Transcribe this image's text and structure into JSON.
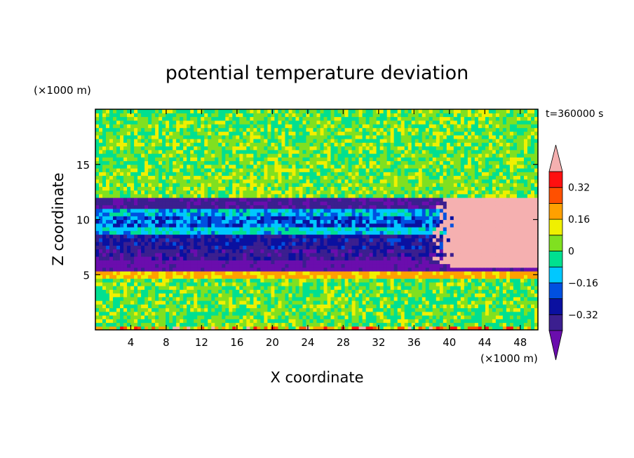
{
  "chart_data": {
    "type": "heatmap",
    "title": "potential temperature deviation",
    "xlabel": "X coordinate",
    "ylabel": "Z coordinate",
    "x_unit": "(×1000 m)",
    "y_unit": "(×1000 m)",
    "time_label": "t=360000 s",
    "xlim": [
      0,
      50
    ],
    "ylim": [
      0,
      20
    ],
    "x_ticks": [
      4,
      8,
      12,
      16,
      20,
      24,
      28,
      32,
      36,
      40,
      44,
      48
    ],
    "y_ticks": [
      5,
      10,
      15
    ],
    "colorbar": {
      "levels": [
        -0.48,
        -0.4,
        -0.32,
        -0.24,
        -0.16,
        -0.08,
        0,
        0.08,
        0.16,
        0.24,
        0.32,
        0.4
      ],
      "labels": [
        0.32,
        0.16,
        0,
        -0.16,
        -0.32
      ],
      "label_text": [
        "0.32",
        "0.16",
        "0",
        "−0.16",
        "−0.32"
      ],
      "colors": [
        "#6a0dad",
        "#3b1f8f",
        "#0a10a0",
        "#0050e0",
        "#00c8ff",
        "#00e090",
        "#80e020",
        "#f0f000",
        "#ffa000",
        "#ff5000",
        "#ff1010",
        "#f5b0b0"
      ],
      "extend": "both"
    },
    "bands": [
      {
        "zmin": 0.0,
        "zmax": 0.3,
        "value": 0.2,
        "noise": 0.25
      },
      {
        "zmin": 0.3,
        "zmax": 4.8,
        "value": 0.02,
        "noise": 0.1
      },
      {
        "zmin": 4.8,
        "zmax": 5.3,
        "value": 0.18,
        "noise": 0.05
      },
      {
        "zmin": 5.3,
        "zmax": 6.3,
        "value": -0.44,
        "noise": 0.05
      },
      {
        "zmin": 6.3,
        "zmax": 7.2,
        "value": -0.36,
        "noise": 0.08
      },
      {
        "zmin": 7.2,
        "zmax": 8.8,
        "value": -0.3,
        "noise": 0.08
      },
      {
        "zmin": 8.8,
        "zmax": 9.4,
        "value": -0.1,
        "noise": 0.08
      },
      {
        "zmin": 9.4,
        "zmax": 10.2,
        "value": -0.2,
        "noise": 0.1
      },
      {
        "zmin": 10.2,
        "zmax": 11.0,
        "value": -0.12,
        "noise": 0.1
      },
      {
        "zmin": 11.0,
        "zmax": 12.0,
        "value": -0.38,
        "noise": 0.05
      },
      {
        "zmin": 12.0,
        "zmax": 14.0,
        "value": 0.04,
        "noise": 0.08
      },
      {
        "zmin": 14.0,
        "zmax": 20.0,
        "value": 0.02,
        "noise": 0.1
      }
    ],
    "warm_anomaly": {
      "xmin": 38,
      "xmax": 50,
      "zmin": 5.8,
      "zmax": 12.0,
      "value": 0.45
    }
  }
}
